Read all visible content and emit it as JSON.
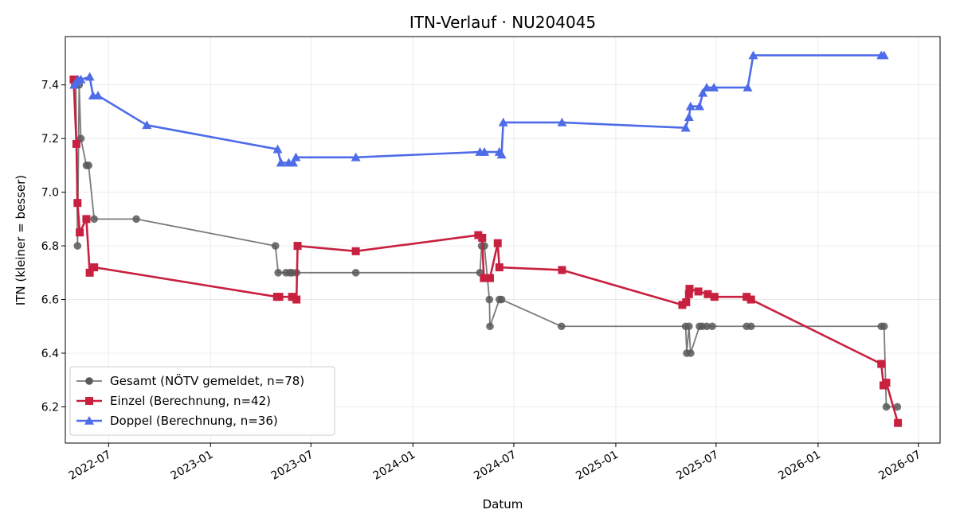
{
  "chart_data": {
    "type": "line",
    "title": "ITN-Verlauf · NU204045",
    "xlabel": "Datum",
    "ylabel": "ITN  (kleiner = besser)",
    "xlim": [
      "2022-04-14",
      "2026-08-09"
    ],
    "ylim": [
      6.065,
      7.58
    ],
    "x_ticks": [
      "2022-07-01",
      "2023-01-01",
      "2023-07-01",
      "2024-01-01",
      "2024-07-01",
      "2025-01-01",
      "2025-07-01",
      "2026-01-01",
      "2026-07-01"
    ],
    "x_tick_labels": [
      "2022-07",
      "2023-01",
      "2023-07",
      "2024-01",
      "2024-07",
      "2025-01",
      "2025-07",
      "2026-01",
      "2026-07"
    ],
    "y_ticks": [
      6.2,
      6.4,
      6.6,
      6.8,
      7.0,
      7.2,
      7.4
    ],
    "y_tick_labels": [
      "6.2",
      "6.4",
      "6.6",
      "6.8",
      "7.0",
      "7.2",
      "7.4"
    ],
    "grid": true,
    "legend_position": "lower-left",
    "series": [
      {
        "name": "Gesamt (NÖTV gemeldet, n=78)",
        "color": "#595959",
        "marker": "circle",
        "points": [
          [
            "2022-05-01",
            7.4
          ],
          [
            "2022-05-03",
            7.4
          ],
          [
            "2022-05-06",
            6.8
          ],
          [
            "2022-05-09",
            7.4
          ],
          [
            "2022-05-12",
            7.2
          ],
          [
            "2022-05-22",
            7.1
          ],
          [
            "2022-05-26",
            7.1
          ],
          [
            "2022-06-05",
            6.9
          ],
          [
            "2022-08-20",
            6.9
          ],
          [
            "2023-04-28",
            6.8
          ],
          [
            "2023-05-03",
            6.7
          ],
          [
            "2023-05-17",
            6.7
          ],
          [
            "2023-05-24",
            6.7
          ],
          [
            "2023-05-28",
            6.7
          ],
          [
            "2023-06-05",
            6.7
          ],
          [
            "2023-09-20",
            6.7
          ],
          [
            "2024-05-01",
            6.7
          ],
          [
            "2024-05-04",
            6.8
          ],
          [
            "2024-05-09",
            6.8
          ],
          [
            "2024-05-18",
            6.6
          ],
          [
            "2024-05-19",
            6.5
          ],
          [
            "2024-06-05",
            6.6
          ],
          [
            "2024-06-09",
            6.6
          ],
          [
            "2024-09-25",
            6.5
          ],
          [
            "2025-05-07",
            6.5
          ],
          [
            "2025-05-09",
            6.4
          ],
          [
            "2025-05-13",
            6.5
          ],
          [
            "2025-05-16",
            6.4
          ],
          [
            "2025-06-01",
            6.5
          ],
          [
            "2025-06-06",
            6.5
          ],
          [
            "2025-06-14",
            6.5
          ],
          [
            "2025-06-24",
            6.5
          ],
          [
            "2025-08-25",
            6.5
          ],
          [
            "2025-09-02",
            6.5
          ],
          [
            "2026-04-25",
            6.5
          ],
          [
            "2026-04-30",
            6.5
          ],
          [
            "2026-05-04",
            6.2
          ],
          [
            "2026-05-24",
            6.2
          ]
        ]
      },
      {
        "name": "Einzel (Berechnung, n=42)",
        "color": "#c8203f",
        "marker": "square",
        "points": [
          [
            "2022-04-29",
            7.42
          ],
          [
            "2022-05-04",
            7.18
          ],
          [
            "2022-05-06",
            6.96
          ],
          [
            "2022-05-10",
            6.85
          ],
          [
            "2022-05-22",
            6.9
          ],
          [
            "2022-05-28",
            6.7
          ],
          [
            "2022-06-05",
            6.72
          ],
          [
            "2023-05-01",
            6.61
          ],
          [
            "2023-05-05",
            6.61
          ],
          [
            "2023-05-28",
            6.61
          ],
          [
            "2023-06-05",
            6.6
          ],
          [
            "2023-06-07",
            6.8
          ],
          [
            "2023-09-20",
            6.78
          ],
          [
            "2024-04-28",
            6.84
          ],
          [
            "2024-05-05",
            6.83
          ],
          [
            "2024-05-08",
            6.68
          ],
          [
            "2024-05-12",
            6.68
          ],
          [
            "2024-05-19",
            6.68
          ],
          [
            "2024-06-02",
            6.81
          ],
          [
            "2024-06-05",
            6.72
          ],
          [
            "2024-09-26",
            6.71
          ],
          [
            "2025-05-01",
            6.58
          ],
          [
            "2025-05-08",
            6.59
          ],
          [
            "2025-05-13",
            6.62
          ],
          [
            "2025-05-14",
            6.64
          ],
          [
            "2025-05-30",
            6.63
          ],
          [
            "2025-06-16",
            6.62
          ],
          [
            "2025-06-28",
            6.61
          ],
          [
            "2025-08-25",
            6.61
          ],
          [
            "2025-09-02",
            6.6
          ],
          [
            "2026-04-25",
            6.36
          ],
          [
            "2026-04-29",
            6.28
          ],
          [
            "2026-05-04",
            6.29
          ],
          [
            "2026-05-25",
            6.14
          ]
        ]
      },
      {
        "name": "Doppel (Berechnung, n=36)",
        "color": "#4f6ce8",
        "marker": "triangle",
        "points": [
          [
            "2022-04-30",
            7.4
          ],
          [
            "2022-05-03",
            7.41
          ],
          [
            "2022-05-05",
            7.41
          ],
          [
            "2022-05-07",
            7.42
          ],
          [
            "2022-05-12",
            7.42
          ],
          [
            "2022-05-28",
            7.43
          ],
          [
            "2022-06-03",
            7.36
          ],
          [
            "2022-06-12",
            7.36
          ],
          [
            "2022-09-08",
            7.25
          ],
          [
            "2023-05-02",
            7.16
          ],
          [
            "2023-05-08",
            7.11
          ],
          [
            "2023-05-22",
            7.11
          ],
          [
            "2023-05-30",
            7.11
          ],
          [
            "2023-06-04",
            7.13
          ],
          [
            "2023-09-20",
            7.13
          ],
          [
            "2024-05-01",
            7.15
          ],
          [
            "2024-05-09",
            7.15
          ],
          [
            "2024-06-05",
            7.15
          ],
          [
            "2024-06-09",
            7.14
          ],
          [
            "2024-06-12",
            7.26
          ],
          [
            "2024-09-26",
            7.26
          ],
          [
            "2025-05-07",
            7.24
          ],
          [
            "2025-05-13",
            7.28
          ],
          [
            "2025-05-16",
            7.32
          ],
          [
            "2025-06-01",
            7.32
          ],
          [
            "2025-06-07",
            7.37
          ],
          [
            "2025-06-14",
            7.39
          ],
          [
            "2025-06-27",
            7.39
          ],
          [
            "2025-08-27",
            7.39
          ],
          [
            "2025-09-06",
            7.51
          ],
          [
            "2026-04-25",
            7.51
          ],
          [
            "2026-04-30",
            7.51
          ]
        ]
      }
    ]
  }
}
